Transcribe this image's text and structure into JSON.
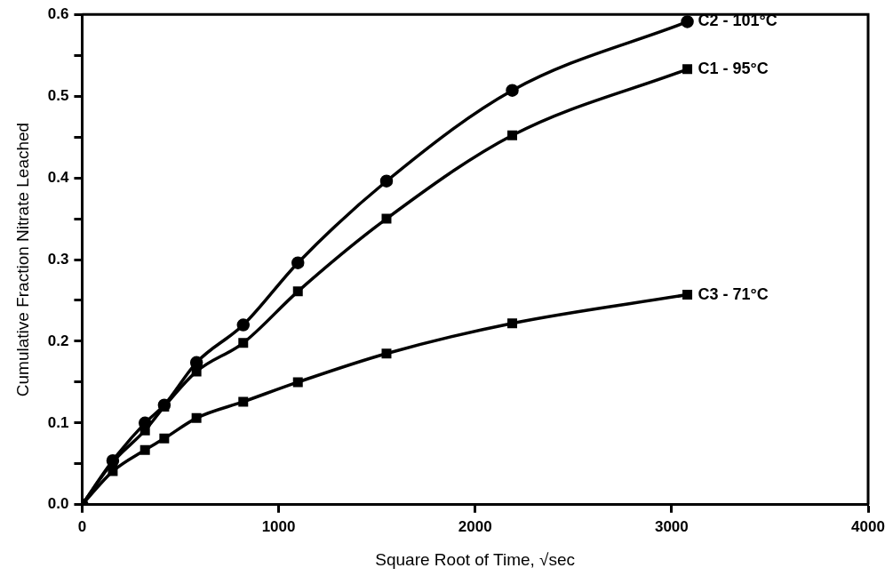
{
  "chart_data": {
    "type": "line",
    "xlabel": "Square Root of Time, √sec",
    "ylabel": "Cumulative Fraction Nitrate Leached",
    "x": [
      0,
      156,
      320,
      418,
      582,
      820,
      1098,
      1549,
      2189,
      3080
    ],
    "xlim": [
      0,
      4000
    ],
    "xticks": [
      0,
      1000,
      2000,
      3000,
      4000
    ],
    "ylim": [
      0,
      0.6
    ],
    "yticks": [
      {
        "value": 0,
        "label": "0.0"
      },
      {
        "value": 0.05,
        "label": null
      },
      0.1,
      {
        "value": 0.15,
        "label": null
      },
      0.2,
      {
        "value": 0.25,
        "label": null
      },
      0.3,
      {
        "value": 0.35,
        "label": null
      },
      0.4,
      {
        "value": 0.45,
        "label": null
      },
      0.5,
      {
        "value": 0.55,
        "label": null
      },
      0.6
    ],
    "grid": false,
    "legend": false,
    "series": [
      {
        "name": "C2 - 101°C",
        "color": "#000000",
        "marker": "circle",
        "values": [
          0,
          0.054,
          0.1,
          0.122,
          0.174,
          0.22,
          0.296,
          0.396,
          0.507,
          0.591
        ]
      },
      {
        "name": "C1 - 95°C",
        "color": "#000000",
        "marker": "square",
        "values": [
          0,
          0.052,
          0.091,
          0.12,
          0.163,
          0.198,
          0.261,
          0.35,
          0.452,
          0.533
        ]
      },
      {
        "name": "C3 - 71°C",
        "color": "#000000",
        "marker": "square",
        "values": [
          0,
          0.041,
          0.067,
          0.081,
          0.106,
          0.126,
          0.15,
          0.185,
          0.222,
          0.257
        ]
      }
    ]
  }
}
